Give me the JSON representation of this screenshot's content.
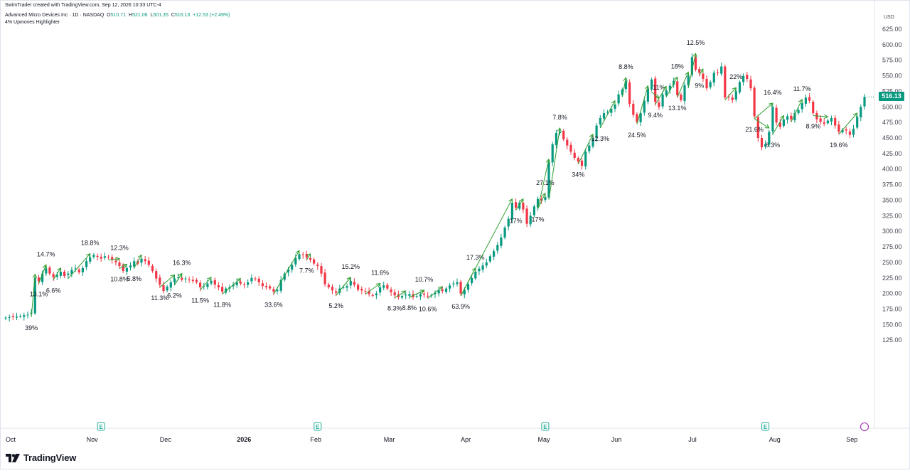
{
  "header": {
    "attribution": "SwimTrader created with TradingView.com, Sep 12, 2026 10:33 UTC-4",
    "symbol": "Advanced Micro Devices Inc · 1D · NASDAQ",
    "ohlc": {
      "o_label": "O",
      "o": "510.71",
      "h_label": "H",
      "h": "521.06",
      "l_label": "L",
      "l": "501.35",
      "c_label": "C",
      "c": "516.13",
      "change": "+12.53 (+2.49%)"
    },
    "indicator": "4% Upmoves Highlighter"
  },
  "price_scale": {
    "currency": "USD",
    "last_price": "516.13"
  },
  "brand": {
    "name": "TradingView"
  },
  "colors": {
    "up": "#089981",
    "down": "#f23645",
    "upmove_line": "#2e9e2e",
    "text": "#131722",
    "axis_text": "#434651"
  },
  "chart_data": {
    "type": "candlestick",
    "y_axis": {
      "ticks": [
        125,
        150,
        175,
        200,
        225,
        250,
        275,
        300,
        325,
        350,
        375,
        400,
        425,
        450,
        475,
        500,
        525,
        550,
        575,
        600,
        625
      ],
      "tick_labels": [
        "125.00",
        "150.00",
        "175.00",
        "200.00",
        "225.00",
        "250.00",
        "275.00",
        "300.00",
        "325.00",
        "350.00",
        "375.00",
        "400.00",
        "425.00",
        "450.00",
        "475.00",
        "500.00",
        "525.00",
        "550.00",
        "575.00",
        "600.00",
        "625.00"
      ],
      "range": [
        107,
        640
      ]
    },
    "x_axis": {
      "labels": [
        {
          "label": "Oct",
          "i": 0
        },
        {
          "label": "Nov",
          "i": 22
        },
        {
          "label": "Dec",
          "i": 42
        },
        {
          "label": "2026",
          "i": 63
        },
        {
          "label": "Feb",
          "i": 83
        },
        {
          "label": "Mar",
          "i": 103
        },
        {
          "label": "Apr",
          "i": 124
        },
        {
          "label": "May",
          "i": 145
        },
        {
          "label": "Jun",
          "i": 165
        },
        {
          "label": "Jul",
          "i": 186
        },
        {
          "label": "Aug",
          "i": 208
        },
        {
          "label": "Sep",
          "i": 229
        }
      ],
      "bold": [
        "2026"
      ]
    },
    "earnings_markers": [
      26,
      85,
      147,
      207
    ],
    "closes": [
      161,
      162,
      162,
      163,
      164,
      165,
      166,
      169,
      225,
      220,
      232,
      240,
      232,
      226,
      230,
      235,
      228,
      232,
      238,
      240,
      234,
      241,
      252,
      258,
      262,
      259,
      256,
      260,
      258,
      254,
      250,
      244,
      236,
      241,
      245,
      252,
      248,
      256,
      252,
      246,
      236,
      224,
      214,
      204,
      211,
      218,
      224,
      226,
      222,
      224,
      222,
      220,
      218,
      210,
      212,
      216,
      220,
      214,
      210,
      203,
      208,
      210,
      214,
      218,
      216,
      214,
      218,
      225,
      223,
      218,
      212,
      210,
      208,
      203,
      206,
      222,
      232,
      239,
      246,
      257,
      263,
      262,
      258,
      254,
      248,
      244,
      232,
      215,
      210,
      205,
      201,
      208,
      210,
      212,
      220,
      214,
      206,
      205,
      203,
      199,
      197,
      200,
      210,
      213,
      208,
      202,
      197,
      194,
      196,
      198,
      199,
      194,
      196,
      199,
      198,
      196,
      197,
      201,
      205,
      204,
      208,
      213,
      216,
      218,
      200,
      206,
      215,
      225,
      235,
      240,
      245,
      250,
      260,
      268,
      278,
      290,
      306,
      320,
      346,
      338,
      346,
      335,
      312,
      325,
      340,
      352,
      349,
      355,
      410,
      440,
      458,
      460,
      448,
      438,
      428,
      418,
      412,
      405,
      428,
      438,
      450,
      470,
      482,
      490,
      492,
      497,
      504,
      520,
      528,
      541,
      505,
      487,
      476,
      490,
      510,
      528,
      544,
      508,
      500,
      520,
      527,
      534,
      542,
      519,
      511,
      535,
      550,
      580,
      560,
      555,
      545,
      530,
      540,
      555,
      555,
      565,
      515,
      516,
      511,
      525,
      540,
      550,
      545,
      530,
      485,
      450,
      435,
      440,
      460,
      500,
      475,
      468,
      480,
      485,
      480,
      490,
      495,
      506,
      515,
      510,
      490,
      480,
      476,
      473,
      478,
      482,
      470,
      460,
      463,
      462,
      455,
      465,
      484,
      500,
      516
    ]
  },
  "upmoves": [
    {
      "from": 7,
      "to": 8,
      "label": "39%",
      "lpos": "below"
    },
    {
      "from": 9,
      "to": 11,
      "label": "14.7%",
      "lpos": "above"
    },
    {
      "from": 9,
      "to": 11,
      "label": "13.1%",
      "lpos": "below"
    },
    {
      "from": 13,
      "to": 15,
      "label": "6.6%",
      "lpos": "below"
    },
    {
      "from": 17,
      "to": 23,
      "label": "18.8%",
      "lpos": "above"
    },
    {
      "from": 28,
      "to": 31,
      "label": "12.3%",
      "lpos": "above"
    },
    {
      "from": 31,
      "to": 33,
      "label": "10.8%",
      "lpos": "below"
    },
    {
      "from": 35,
      "to": 37,
      "label": "5.8%",
      "lpos": "below"
    },
    {
      "from": 42,
      "to": 46,
      "label": "11.3%",
      "lpos": "below"
    },
    {
      "from": 46,
      "to": 48,
      "label": "16.3%",
      "lpos": "above"
    },
    {
      "from": 46,
      "to": 48,
      "label": "6.2%",
      "lpos": "below"
    },
    {
      "from": 53,
      "to": 56,
      "label": "11.5%",
      "lpos": "below"
    },
    {
      "from": 59,
      "to": 64,
      "label": "11.8%",
      "lpos": "below"
    },
    {
      "from": 73,
      "to": 80,
      "label": "33.6%",
      "lpos": "below"
    },
    {
      "from": 82,
      "to": 83,
      "label": "7.7%",
      "lpos": "below"
    },
    {
      "from": 90,
      "to": 94,
      "label": "15.2%",
      "lpos": "above"
    },
    {
      "from": 90,
      "to": 94,
      "label": "5.2%",
      "lpos": "below"
    },
    {
      "from": 98,
      "to": 102,
      "label": "11.6%",
      "lpos": "above"
    },
    {
      "from": 106,
      "to": 109,
      "label": "8.3%",
      "lpos": "below"
    },
    {
      "from": 110,
      "to": 114,
      "label": "10.7%",
      "lpos": "above"
    },
    {
      "from": 110,
      "to": 114,
      "label": "8.8%",
      "lpos": "below"
    },
    {
      "from": 115,
      "to": 119,
      "label": "10.6%",
      "lpos": "below"
    },
    {
      "from": 124,
      "to": 128,
      "label": "17.3%",
      "lpos": "above"
    },
    {
      "from": 124,
      "to": 138,
      "label": "63.9%",
      "lpos": "below"
    },
    {
      "from": 139,
      "to": 141,
      "label": "17%",
      "lpos": "below"
    },
    {
      "from": 145,
      "to": 147,
      "label": "27.1%",
      "lpos": "above"
    },
    {
      "from": 145,
      "to": 148,
      "label": "17%",
      "lpos": "below"
    },
    {
      "from": 148,
      "to": 151,
      "label": "7.8%",
      "lpos": "above"
    },
    {
      "from": 156,
      "to": 160,
      "label": "34%",
      "lpos": "below"
    },
    {
      "from": 162,
      "to": 166,
      "label": "12.3%",
      "lpos": "below"
    },
    {
      "from": 168,
      "to": 169,
      "label": "8.8%",
      "lpos": "above"
    },
    {
      "from": 172,
      "to": 175,
      "label": "24.5%",
      "lpos": "below"
    },
    {
      "from": 176,
      "to": 178,
      "label": "11%",
      "lpos": "above"
    },
    {
      "from": 177,
      "to": 180,
      "label": "9.4%",
      "lpos": "below"
    },
    {
      "from": 180,
      "to": 183,
      "label": "18%",
      "lpos": "above"
    },
    {
      "from": 183,
      "to": 186,
      "label": "13.1%",
      "lpos": "below"
    },
    {
      "from": 186,
      "to": 188,
      "label": "12.5%",
      "lpos": "above"
    },
    {
      "from": 189,
      "to": 190,
      "label": "9%",
      "lpos": "below"
    },
    {
      "from": 196,
      "to": 199,
      "label": "22%",
      "lpos": "above"
    },
    {
      "from": 204,
      "to": 209,
      "label": "16.4%",
      "lpos": "above"
    },
    {
      "from": 204,
      "to": 208,
      "label": "21.6%",
      "lpos": "below"
    },
    {
      "from": 209,
      "to": 212,
      "label": "6.3%",
      "lpos": "below"
    },
    {
      "from": 214,
      "to": 217,
      "label": "11.7%",
      "lpos": "above"
    },
    {
      "from": 220,
      "to": 224,
      "label": "8.9%",
      "lpos": "below"
    },
    {
      "from": 227,
      "to": 232,
      "label": "19.6%",
      "lpos": "below"
    }
  ]
}
